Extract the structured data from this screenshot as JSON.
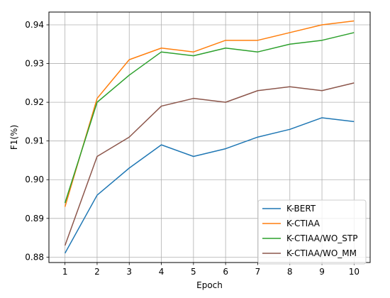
{
  "chart_data": {
    "type": "line",
    "title": "",
    "xlabel": "Epoch",
    "ylabel": "F1(%)",
    "x": [
      1,
      2,
      3,
      4,
      5,
      6,
      7,
      8,
      9,
      10
    ],
    "xlim": [
      0.5,
      10.5
    ],
    "ylim": [
      0.8786,
      0.9433
    ],
    "xticks": [
      "1",
      "2",
      "3",
      "4",
      "5",
      "6",
      "7",
      "8",
      "9",
      "10"
    ],
    "yticks": [
      "0.88",
      "0.89",
      "0.90",
      "0.91",
      "0.92",
      "0.93",
      "0.94"
    ],
    "grid": true,
    "legend_position": "lower right",
    "series": [
      {
        "name": "K-BERT",
        "color": "#1f77b4",
        "values": [
          0.881,
          0.896,
          0.903,
          0.909,
          0.906,
          0.908,
          0.911,
          0.913,
          0.916,
          0.915
        ]
      },
      {
        "name": "K-CTIAA",
        "color": "#ff7f0e",
        "values": [
          0.893,
          0.921,
          0.931,
          0.934,
          0.933,
          0.936,
          0.936,
          0.938,
          0.94,
          0.941
        ]
      },
      {
        "name": "K-CTIAA/WO_STP",
        "color": "#2ca02c",
        "values": [
          0.894,
          0.92,
          0.927,
          0.933,
          0.932,
          0.934,
          0.933,
          0.935,
          0.936,
          0.938
        ]
      },
      {
        "name": "K-CTIAA/WO_MM",
        "color": "#8c564b",
        "values": [
          0.883,
          0.906,
          0.911,
          0.919,
          0.921,
          0.92,
          0.923,
          0.924,
          0.923,
          0.925
        ]
      }
    ]
  }
}
